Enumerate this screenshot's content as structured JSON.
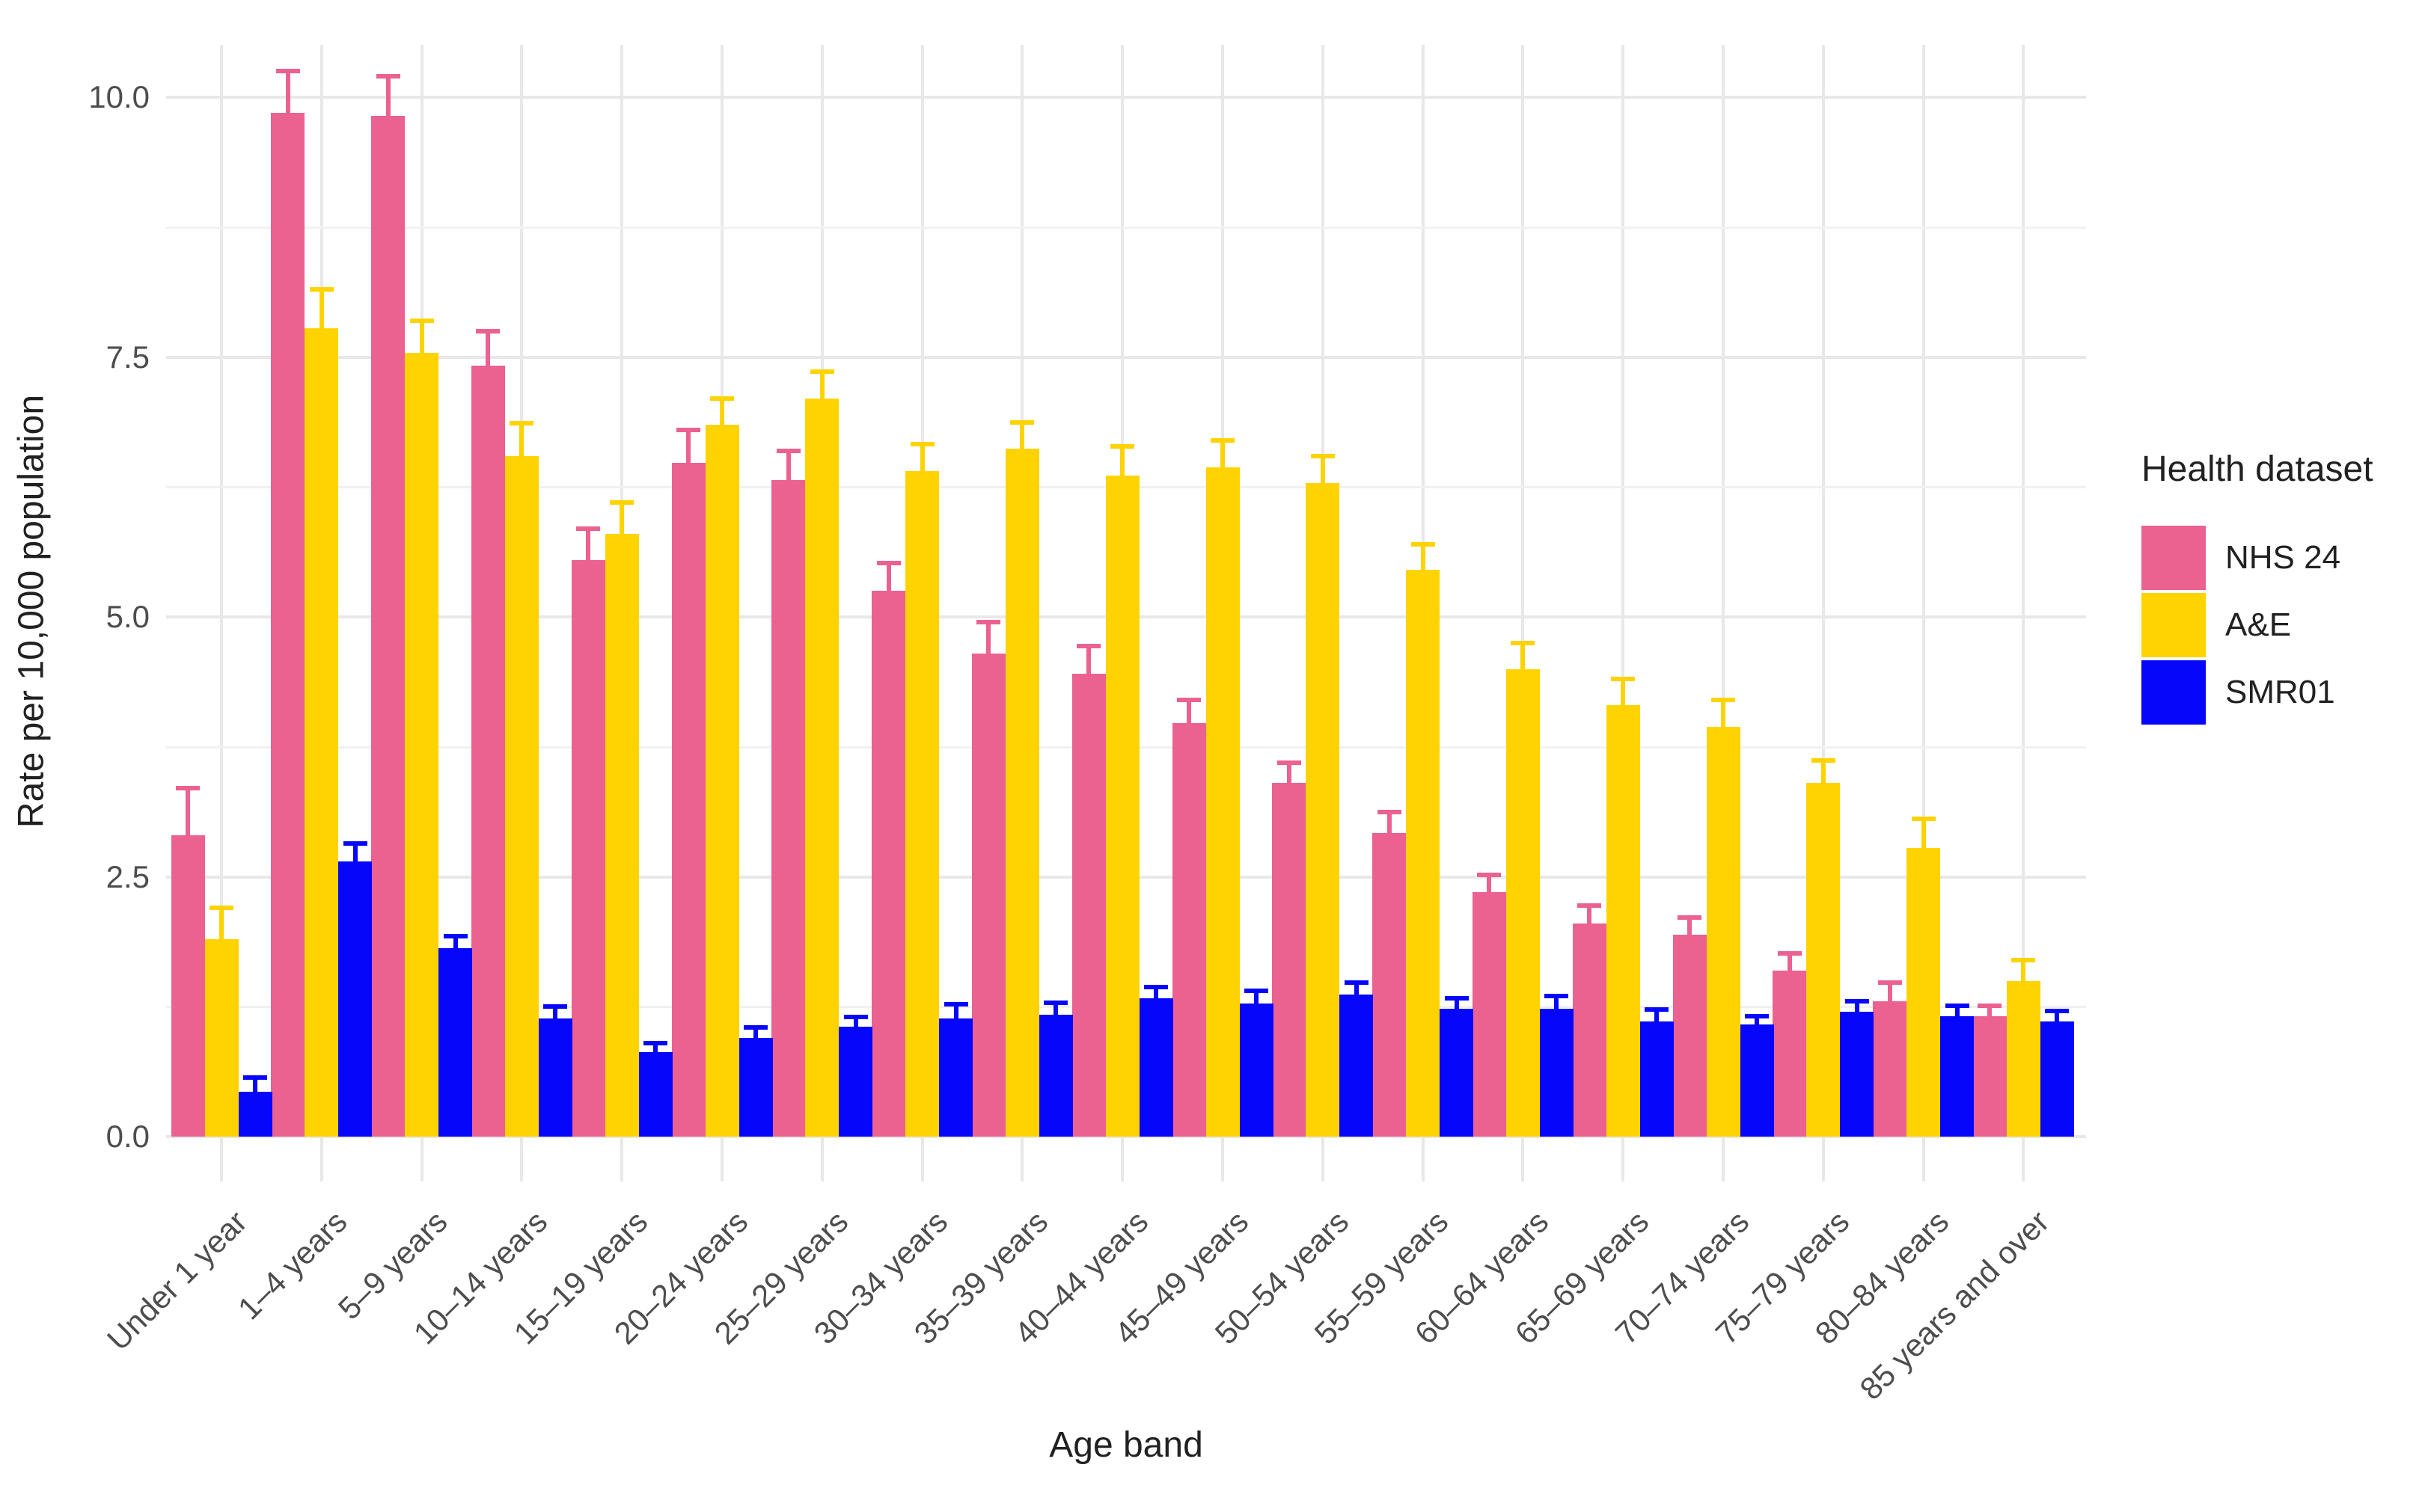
{
  "chart_data": {
    "type": "bar",
    "title": "",
    "xlabel": "Age band",
    "ylabel": "Rate per 10,000 population",
    "legend_title": "Health dataset",
    "legend_position": "right",
    "grid": true,
    "ylim": [
      0,
      10.25
    ],
    "y_ticks": [
      {
        "label": "0.0",
        "value": 0
      },
      {
        "label": "2.5",
        "value": 2.5
      },
      {
        "label": "5.0",
        "value": 5.0
      },
      {
        "label": "7.5",
        "value": 7.5
      },
      {
        "label": "10.0",
        "value": 10.0
      }
    ],
    "y_minor_gridlines": [
      1.25,
      3.75,
      6.25,
      8.75
    ],
    "categories": [
      "Under 1 year",
      "1–4 years",
      "5–9 years",
      "10–14 years",
      "15–19 years",
      "20–24 years",
      "25–29 years",
      "30–34 years",
      "35–39 years",
      "40–44 years",
      "45–49 years",
      "50–54 years",
      "55–59 years",
      "60–64 years",
      "65–69 years",
      "70–74 years",
      "75–79 years",
      "80–84 years",
      "85 years and over"
    ],
    "series": [
      {
        "name": "NHS 24",
        "color": "#eb6190",
        "values": [
          2.9,
          9.85,
          9.82,
          7.42,
          5.55,
          6.48,
          6.32,
          5.25,
          4.65,
          4.45,
          3.98,
          3.4,
          2.92,
          2.35,
          2.05,
          1.94,
          1.6,
          1.3,
          1.16
        ],
        "upper": [
          3.35,
          10.25,
          10.2,
          7.75,
          5.85,
          6.8,
          6.6,
          5.52,
          4.95,
          4.72,
          4.2,
          3.6,
          3.12,
          2.52,
          2.22,
          2.11,
          1.76,
          1.48,
          1.26
        ]
      },
      {
        "name": "A&E",
        "color": "#ffd300",
        "values": [
          1.9,
          7.78,
          7.54,
          6.55,
          5.8,
          6.85,
          7.1,
          6.4,
          6.62,
          6.36,
          6.44,
          6.29,
          5.45,
          4.5,
          4.15,
          3.94,
          3.4,
          2.78,
          1.5
        ],
        "upper": [
          2.2,
          8.15,
          7.85,
          6.86,
          6.1,
          7.1,
          7.36,
          6.66,
          6.87,
          6.64,
          6.7,
          6.55,
          5.7,
          4.75,
          4.4,
          4.2,
          3.62,
          3.06,
          1.7
        ]
      },
      {
        "name": "SMR01",
        "color": "#0606fa",
        "values": [
          0.43,
          2.65,
          1.81,
          1.14,
          0.81,
          0.95,
          1.06,
          1.14,
          1.17,
          1.33,
          1.28,
          1.37,
          1.23,
          1.23,
          1.11,
          1.08,
          1.2,
          1.16,
          1.11
        ],
        "upper": [
          0.57,
          2.82,
          1.93,
          1.25,
          0.9,
          1.05,
          1.15,
          1.27,
          1.29,
          1.44,
          1.4,
          1.48,
          1.33,
          1.35,
          1.22,
          1.16,
          1.3,
          1.26,
          1.21
        ]
      }
    ]
  }
}
